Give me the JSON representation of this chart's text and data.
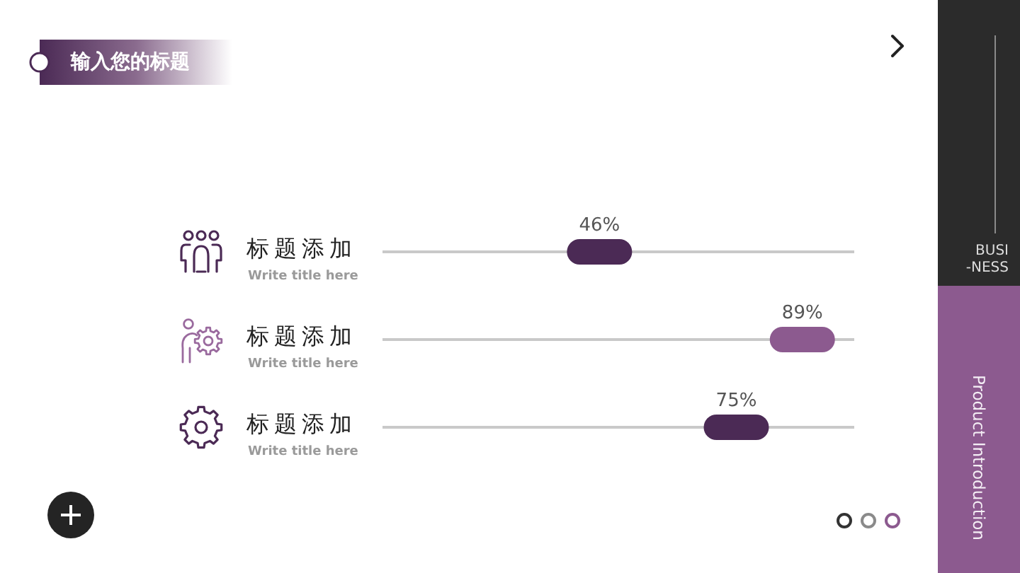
{
  "chart_data": {
    "type": "other",
    "title": "输入您的标题",
    "categories": [
      "标题添加\nWrite title here",
      "标题添加\nWrite title here",
      "标题添加\nWrite title here"
    ],
    "values": [
      46,
      89,
      75
    ],
    "colors": [
      "#4b2a55",
      "#8c5a8f",
      "#4b2a55"
    ],
    "value_labels": [
      "46%",
      "89%",
      "75%"
    ],
    "annotations": [
      "BUSI\n-NESS",
      "Product Introduction"
    ]
  }
}
